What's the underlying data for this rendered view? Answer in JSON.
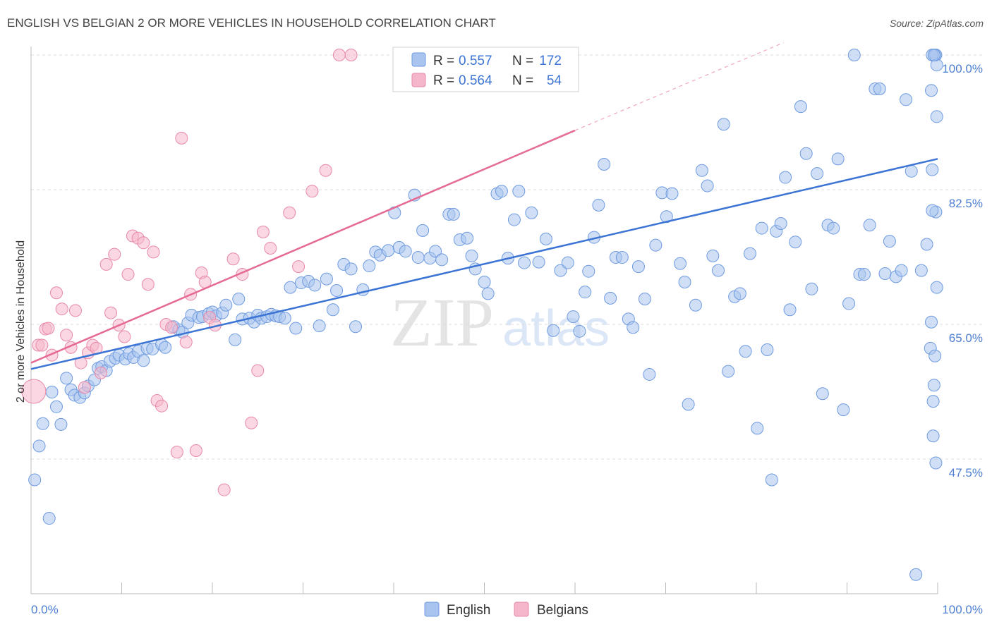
{
  "chart_data": {
    "type": "scatter",
    "title": "ENGLISH VS BELGIAN 2 OR MORE VEHICLES IN HOUSEHOLD CORRELATION CHART",
    "source": "Source: ZipAtlas.com",
    "watermark": {
      "zip": "ZIP",
      "atlas": "atlas"
    },
    "ylabel": "2 or more Vehicles in Household",
    "xlim": [
      0,
      100
    ],
    "ylim": [
      30,
      100
    ],
    "x_tick_labels": [
      "0.0%",
      "100.0%"
    ],
    "y_ticks": [
      {
        "value": 100,
        "label": "100.0%"
      },
      {
        "value": 82.5,
        "label": "82.5%"
      },
      {
        "value": 65,
        "label": "65.0%"
      },
      {
        "value": 47.5,
        "label": "47.5%"
      }
    ],
    "colors": {
      "english": "#a9c4ee",
      "english_edge": "#6f9be0",
      "english_line": "#3b74d4",
      "belgians": "#f5b6cb",
      "belgians_edge": "#e889a8",
      "belgians_line": "#e56b93",
      "grid": "#dddddd",
      "axis_text": "#4f7fd3"
    },
    "legend": {
      "rows": [
        {
          "r_label": "R =",
          "r_value": "0.557",
          "n_label": "N =",
          "n_value": "172"
        },
        {
          "r_label": "R =",
          "r_value": "0.564",
          "n_label": "N =",
          "n_value": "54"
        }
      ]
    },
    "bottom_legend": [
      "English",
      "Belgians"
    ],
    "series": [
      {
        "name": "English",
        "trend": {
          "x": [
            0,
            100
          ],
          "y": [
            59.2,
            86.5
          ]
        },
        "points": [
          [
            0.4,
            44.8
          ],
          [
            0.9,
            49.2
          ],
          [
            1.3,
            52.1
          ],
          [
            2.0,
            39.8
          ],
          [
            2.3,
            56.2
          ],
          [
            2.8,
            54.3
          ],
          [
            3.3,
            52.0
          ],
          [
            3.9,
            58.0
          ],
          [
            4.4,
            56.5
          ],
          [
            4.8,
            55.8
          ],
          [
            5.4,
            55.5
          ],
          [
            5.9,
            56.1
          ],
          [
            6.3,
            57.0
          ],
          [
            7.0,
            57.8
          ],
          [
            7.4,
            59.3
          ],
          [
            7.8,
            59.5
          ],
          [
            8.3,
            59.0
          ],
          [
            8.7,
            60.2
          ],
          [
            9.3,
            60.6
          ],
          [
            9.7,
            61.0
          ],
          [
            10.4,
            60.5
          ],
          [
            10.8,
            61.2
          ],
          [
            11.3,
            60.7
          ],
          [
            11.8,
            61.5
          ],
          [
            12.4,
            60.3
          ],
          [
            12.8,
            61.9
          ],
          [
            13.4,
            61.8
          ],
          [
            14.4,
            62.4
          ],
          [
            14.8,
            62.0
          ],
          [
            15.7,
            64.7
          ],
          [
            16.3,
            64.3
          ],
          [
            16.7,
            64.0
          ],
          [
            17.3,
            65.2
          ],
          [
            17.7,
            66.2
          ],
          [
            18.5,
            65.9
          ],
          [
            18.9,
            66.0
          ],
          [
            19.6,
            66.4
          ],
          [
            20.0,
            66.6
          ],
          [
            20.4,
            66.1
          ],
          [
            21.1,
            66.5
          ],
          [
            21.5,
            67.5
          ],
          [
            22.5,
            63.0
          ],
          [
            22.9,
            68.3
          ],
          [
            23.3,
            65.7
          ],
          [
            24.1,
            65.8
          ],
          [
            24.6,
            65.3
          ],
          [
            25.0,
            66.2
          ],
          [
            25.4,
            65.8
          ],
          [
            26.0,
            66.0
          ],
          [
            26.5,
            66.3
          ],
          [
            27.0,
            66.1
          ],
          [
            27.4,
            66.0
          ],
          [
            28.0,
            65.8
          ],
          [
            28.6,
            69.8
          ],
          [
            29.2,
            64.5
          ],
          [
            29.8,
            70.4
          ],
          [
            30.6,
            70.6
          ],
          [
            31.3,
            70.1
          ],
          [
            31.8,
            64.8
          ],
          [
            32.6,
            70.9
          ],
          [
            33.3,
            66.9
          ],
          [
            33.7,
            69.4
          ],
          [
            34.5,
            72.8
          ],
          [
            35.3,
            72.2
          ],
          [
            35.8,
            64.7
          ],
          [
            36.6,
            69.5
          ],
          [
            37.3,
            72.6
          ],
          [
            38.0,
            74.4
          ],
          [
            38.5,
            74.0
          ],
          [
            39.4,
            74.6
          ],
          [
            40.1,
            79.5
          ],
          [
            40.6,
            75.0
          ],
          [
            41.3,
            74.5
          ],
          [
            42.3,
            81.8
          ],
          [
            42.7,
            73.7
          ],
          [
            43.2,
            77.2
          ],
          [
            44.0,
            73.6
          ],
          [
            44.6,
            74.5
          ],
          [
            45.3,
            73.4
          ],
          [
            46.1,
            79.3
          ],
          [
            46.6,
            79.3
          ],
          [
            47.3,
            76.0
          ],
          [
            48.1,
            76.2
          ],
          [
            48.6,
            73.9
          ],
          [
            49.0,
            72.2
          ],
          [
            50.0,
            70.5
          ],
          [
            50.4,
            69.0
          ],
          [
            51.4,
            82.0
          ],
          [
            51.9,
            82.3
          ],
          [
            52.6,
            73.6
          ],
          [
            53.3,
            78.6
          ],
          [
            53.8,
            82.3
          ],
          [
            54.4,
            73.0
          ],
          [
            55.2,
            79.5
          ],
          [
            56.0,
            73.1
          ],
          [
            56.8,
            76.1
          ],
          [
            57.6,
            64.2
          ],
          [
            58.4,
            72.0
          ],
          [
            59.2,
            73.0
          ],
          [
            59.8,
            66.0
          ],
          [
            60.5,
            64.1
          ],
          [
            61.1,
            69.2
          ],
          [
            61.5,
            71.9
          ],
          [
            62.1,
            76.3
          ],
          [
            62.6,
            80.5
          ],
          [
            63.2,
            85.8
          ],
          [
            63.9,
            68.4
          ],
          [
            64.5,
            73.7
          ],
          [
            65.2,
            73.7
          ],
          [
            65.9,
            65.7
          ],
          [
            66.4,
            64.6
          ],
          [
            67.0,
            72.5
          ],
          [
            67.7,
            68.3
          ],
          [
            68.2,
            58.5
          ],
          [
            68.9,
            75.3
          ],
          [
            69.6,
            82.1
          ],
          [
            70.1,
            79.0
          ],
          [
            70.7,
            82.0
          ],
          [
            71.6,
            72.9
          ],
          [
            72.1,
            70.5
          ],
          [
            72.5,
            54.6
          ],
          [
            73.3,
            67.5
          ],
          [
            74.0,
            85.0
          ],
          [
            74.6,
            83.0
          ],
          [
            75.2,
            73.9
          ],
          [
            75.8,
            72.0
          ],
          [
            76.4,
            91.0
          ],
          [
            76.9,
            58.9
          ],
          [
            77.6,
            68.6
          ],
          [
            78.2,
            69.0
          ],
          [
            78.8,
            61.5
          ],
          [
            79.3,
            74.2
          ],
          [
            80.1,
            51.5
          ],
          [
            80.6,
            77.5
          ],
          [
            81.2,
            61.7
          ],
          [
            81.7,
            44.8
          ],
          [
            82.2,
            77.1
          ],
          [
            82.7,
            78.1
          ],
          [
            83.2,
            84.1
          ],
          [
            83.7,
            66.9
          ],
          [
            84.3,
            75.7
          ],
          [
            84.9,
            93.3
          ],
          [
            85.5,
            87.2
          ],
          [
            86.1,
            69.6
          ],
          [
            86.7,
            84.6
          ],
          [
            87.3,
            56.0
          ],
          [
            87.9,
            77.9
          ],
          [
            88.5,
            77.5
          ],
          [
            89.0,
            86.5
          ],
          [
            89.6,
            53.9
          ],
          [
            90.2,
            67.7
          ],
          [
            90.8,
            100.0
          ],
          [
            91.4,
            71.5
          ],
          [
            91.9,
            71.5
          ],
          [
            92.5,
            77.9
          ],
          [
            93.1,
            95.6
          ],
          [
            93.6,
            95.6
          ],
          [
            94.2,
            71.6
          ],
          [
            94.7,
            75.8
          ],
          [
            95.4,
            71.2
          ],
          [
            96.0,
            72.0
          ],
          [
            96.5,
            94.2
          ],
          [
            97.1,
            84.9
          ],
          [
            97.6,
            32.5
          ],
          [
            98.2,
            72.0
          ],
          [
            98.8,
            75.4
          ],
          [
            99.3,
            65.3
          ],
          [
            99.7,
            100.0
          ],
          [
            99.2,
            61.9
          ],
          [
            99.6,
            57.1
          ],
          [
            99.9,
            92.0
          ],
          [
            99.4,
            85.1
          ],
          [
            99.8,
            79.6
          ],
          [
            99.5,
            55.0
          ],
          [
            99.7,
            60.9
          ],
          [
            99.3,
            95.4
          ],
          [
            99.8,
            100.0
          ],
          [
            99.4,
            100.0
          ],
          [
            99.9,
            98.7
          ],
          [
            99.6,
            100.0
          ],
          [
            99.5,
            50.5
          ],
          [
            99.8,
            47.0
          ],
          [
            99.4,
            79.8
          ],
          [
            99.9,
            69.8
          ]
        ]
      },
      {
        "name": "Belgians",
        "trend": {
          "x": [
            0,
            60
          ],
          "y": [
            60.0,
            90.2
          ]
        },
        "trend_ext": {
          "x": [
            60,
            83
          ],
          "y": [
            90.2,
            101.6
          ]
        },
        "points": [
          [
            0.3,
            56.3
          ],
          [
            0.8,
            62.3
          ],
          [
            1.2,
            62.3
          ],
          [
            1.6,
            64.4
          ],
          [
            1.9,
            64.5
          ],
          [
            2.3,
            61.0
          ],
          [
            2.8,
            69.1
          ],
          [
            3.4,
            67.0
          ],
          [
            3.9,
            63.6
          ],
          [
            4.4,
            62.0
          ],
          [
            4.9,
            66.8
          ],
          [
            5.5,
            60.0
          ],
          [
            5.9,
            56.8
          ],
          [
            6.3,
            61.3
          ],
          [
            6.8,
            62.3
          ],
          [
            7.2,
            61.9
          ],
          [
            7.7,
            58.7
          ],
          [
            8.3,
            72.8
          ],
          [
            8.8,
            66.5
          ],
          [
            9.2,
            74.1
          ],
          [
            9.7,
            64.9
          ],
          [
            10.3,
            63.4
          ],
          [
            10.7,
            71.5
          ],
          [
            11.2,
            76.5
          ],
          [
            11.8,
            76.2
          ],
          [
            12.4,
            75.6
          ],
          [
            12.9,
            70.2
          ],
          [
            13.5,
            74.4
          ],
          [
            13.9,
            55.1
          ],
          [
            14.4,
            54.4
          ],
          [
            14.9,
            65.0
          ],
          [
            15.5,
            64.6
          ],
          [
            16.1,
            48.4
          ],
          [
            16.6,
            89.2
          ],
          [
            17.1,
            62.7
          ],
          [
            17.6,
            68.9
          ],
          [
            18.2,
            48.6
          ],
          [
            18.8,
            71.7
          ],
          [
            19.2,
            70.5
          ],
          [
            19.7,
            65.9
          ],
          [
            20.3,
            64.9
          ],
          [
            21.3,
            43.5
          ],
          [
            22.3,
            73.5
          ],
          [
            23.3,
            71.5
          ],
          [
            24.3,
            52.2
          ],
          [
            25.0,
            59.0
          ],
          [
            25.6,
            77.0
          ],
          [
            26.4,
            74.9
          ],
          [
            28.5,
            79.5
          ],
          [
            29.5,
            72.5
          ],
          [
            31.0,
            82.3
          ],
          [
            32.5,
            85.0
          ],
          [
            34.0,
            100.0
          ],
          [
            35.3,
            100.0
          ]
        ]
      }
    ]
  }
}
